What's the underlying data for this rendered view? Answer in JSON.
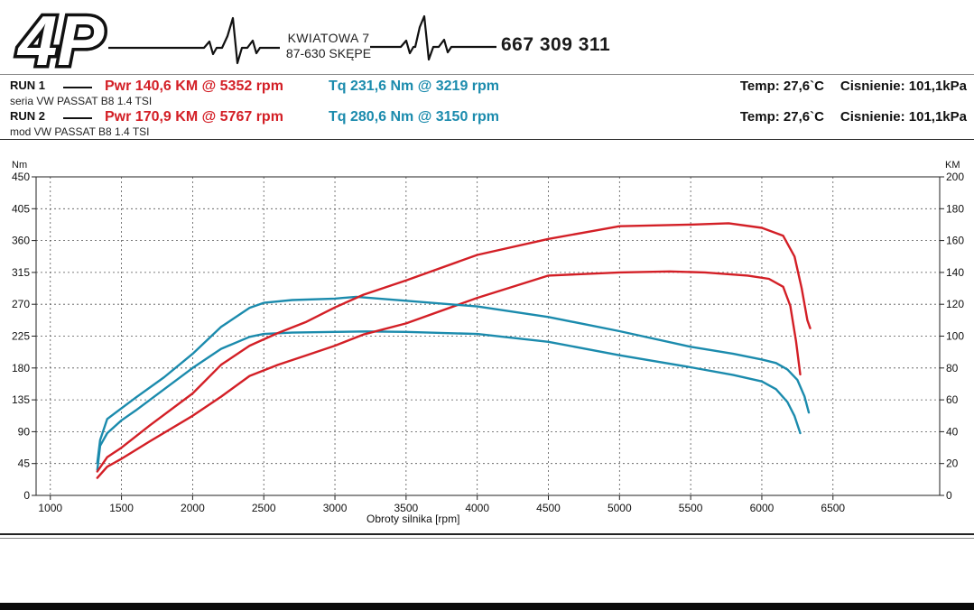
{
  "header": {
    "logo_text": "4P",
    "address_line1": "KWIATOWA 7",
    "address_line2": "87-630 SKĘPE",
    "phone": "667 309 311"
  },
  "runs": [
    {
      "label": "RUN 1",
      "power": "Pwr  140,6 KM @ 5352 rpm",
      "torque": "Tq 231,6 Nm @ 3219 rpm",
      "temp": "Temp: 27,6`C",
      "pressure": "Cisnienie: 101,1kPa",
      "description": "seria VW PASSAT B8 1.4 TSI"
    },
    {
      "label": "RUN 2",
      "power": "Pwr  170,9 KM @ 5767 rpm",
      "torque": "Tq 280,6 Nm @ 3150 rpm",
      "temp": "Temp: 27,6`C",
      "pressure": "Cisnienie: 101,1kPa",
      "description": "mod VW PASSAT B8 1.4 TSI"
    }
  ],
  "colors": {
    "power": "#d31f26",
    "torque": "#1b8bad",
    "grid": "#555555"
  },
  "chart_data": {
    "type": "line",
    "xlabel": "Obroty silnika [rpm]",
    "ylabel_left": "Nm",
    "ylabel_right": "KM",
    "xlim": [
      900,
      7250
    ],
    "xticks": [
      1000,
      1500,
      2000,
      2500,
      3000,
      3500,
      4000,
      4500,
      5000,
      5500,
      6000,
      6500
    ],
    "ylim_left": [
      0,
      450
    ],
    "yticks_left": [
      0,
      45,
      90,
      135,
      180,
      225,
      270,
      315,
      360,
      405,
      450
    ],
    "ylim_right": [
      0,
      200
    ],
    "yticks_right": [
      0,
      20,
      40,
      60,
      80,
      100,
      120,
      140,
      160,
      180,
      200
    ],
    "grid": true,
    "series": [
      {
        "name": "Tq 231,6 Nm @ 3219 rpm",
        "axis": "left",
        "color": "#1b8bad",
        "points": [
          [
            1330,
            36
          ],
          [
            1350,
            70
          ],
          [
            1400,
            88
          ],
          [
            1500,
            106
          ],
          [
            1600,
            120
          ],
          [
            1800,
            150
          ],
          [
            2000,
            180
          ],
          [
            2200,
            207
          ],
          [
            2400,
            224
          ],
          [
            2500,
            228
          ],
          [
            2700,
            230
          ],
          [
            3000,
            231
          ],
          [
            3219,
            231.6
          ],
          [
            3500,
            231
          ],
          [
            4000,
            228
          ],
          [
            4500,
            217
          ],
          [
            5000,
            198
          ],
          [
            5500,
            181
          ],
          [
            5800,
            170
          ],
          [
            6000,
            161
          ],
          [
            6100,
            150
          ],
          [
            6180,
            132
          ],
          [
            6230,
            112
          ],
          [
            6270,
            88
          ]
        ]
      },
      {
        "name": "Pwr  140,6 KM @ 5352 rpm",
        "axis": "right",
        "color": "#d31f26",
        "points": [
          [
            1330,
            11
          ],
          [
            1400,
            18
          ],
          [
            1500,
            23
          ],
          [
            1700,
            34
          ],
          [
            2000,
            50
          ],
          [
            2200,
            62
          ],
          [
            2400,
            75
          ],
          [
            2600,
            82
          ],
          [
            2800,
            88
          ],
          [
            3000,
            94
          ],
          [
            3200,
            101
          ],
          [
            3500,
            108
          ],
          [
            4000,
            124
          ],
          [
            4500,
            138
          ],
          [
            5000,
            140
          ],
          [
            5352,
            140.6
          ],
          [
            5600,
            140
          ],
          [
            5900,
            138
          ],
          [
            6050,
            136
          ],
          [
            6150,
            131
          ],
          [
            6200,
            119
          ],
          [
            6240,
            97
          ],
          [
            6270,
            76
          ]
        ]
      },
      {
        "name": "Tq 280,6 Nm @ 3150 rpm",
        "axis": "left",
        "color": "#1b8bad",
        "points": [
          [
            1330,
            46
          ],
          [
            1350,
            78
          ],
          [
            1400,
            108
          ],
          [
            1600,
            138
          ],
          [
            1800,
            167
          ],
          [
            2000,
            200
          ],
          [
            2200,
            238
          ],
          [
            2400,
            265
          ],
          [
            2500,
            272
          ],
          [
            2700,
            276
          ],
          [
            3000,
            278
          ],
          [
            3150,
            280.6
          ],
          [
            3500,
            275
          ],
          [
            4000,
            267
          ],
          [
            4500,
            252
          ],
          [
            5000,
            232
          ],
          [
            5500,
            210
          ],
          [
            5800,
            200
          ],
          [
            6000,
            192
          ],
          [
            6100,
            187
          ],
          [
            6180,
            178
          ],
          [
            6250,
            163
          ],
          [
            6300,
            140
          ],
          [
            6330,
            117
          ]
        ]
      },
      {
        "name": "Pwr  170,9 KM @ 5767 rpm",
        "axis": "right",
        "color": "#d31f26",
        "points": [
          [
            1330,
            15
          ],
          [
            1400,
            24
          ],
          [
            1500,
            30
          ],
          [
            1700,
            44
          ],
          [
            2000,
            64
          ],
          [
            2200,
            82
          ],
          [
            2400,
            94
          ],
          [
            2600,
            102
          ],
          [
            2800,
            109
          ],
          [
            3000,
            118
          ],
          [
            3200,
            126
          ],
          [
            3500,
            135
          ],
          [
            4000,
            151
          ],
          [
            4500,
            161
          ],
          [
            5000,
            169
          ],
          [
            5500,
            170
          ],
          [
            5767,
            170.9
          ],
          [
            6000,
            168
          ],
          [
            6150,
            163
          ],
          [
            6230,
            150
          ],
          [
            6280,
            130
          ],
          [
            6320,
            110
          ],
          [
            6340,
            105
          ]
        ]
      }
    ]
  }
}
